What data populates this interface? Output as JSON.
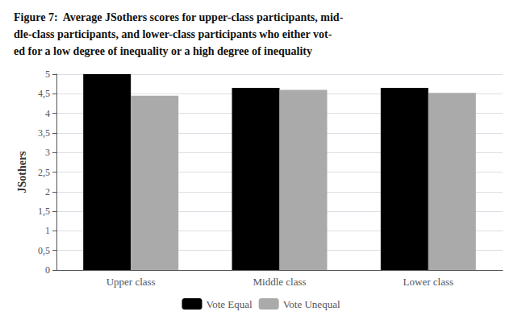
{
  "chart_data": {
    "type": "bar",
    "title": "Figure 7:  Average JSothers scores for upper-class participants, mid-\ndle-class participants, and lower-class participants who either vot-\ned for a low degree of inequality or a high degree of inequality",
    "y_label": "JSothers",
    "categories": [
      "Upper class",
      "Middle class",
      "Lower class"
    ],
    "series": [
      {
        "name": "Vote Equal",
        "color": "#000000",
        "values": [
          5.0,
          4.65,
          4.65
        ]
      },
      {
        "name": "Vote Unequal",
        "color": "#aaaaaa",
        "values": [
          4.45,
          4.6,
          4.52
        ]
      }
    ],
    "ylim": [
      0,
      5
    ],
    "yticks": [
      0,
      {
        "value": 0.5,
        "label": "0,5"
      },
      1,
      {
        "value": 1.5,
        "label": "1,5"
      },
      2,
      {
        "value": 2.5,
        "label": "2,5"
      },
      3,
      {
        "value": 3.5,
        "label": "3,5"
      },
      4,
      {
        "value": 4.5,
        "label": "4,5"
      },
      5
    ],
    "grid": true,
    "legend": "bottom"
  }
}
